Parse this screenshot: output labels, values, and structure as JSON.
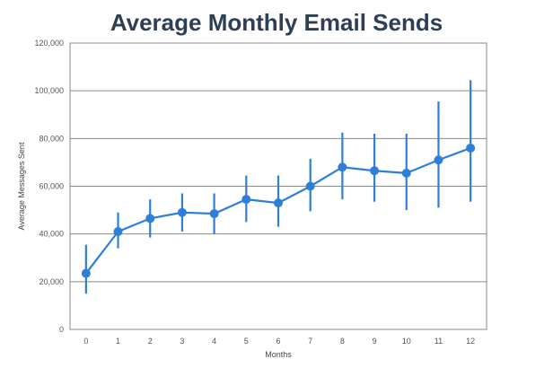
{
  "chart_data": {
    "type": "line",
    "title": "Average Monthly Email Sends",
    "xlabel": "Months",
    "ylabel": "Average Messages Sent",
    "x": [
      0,
      1,
      2,
      3,
      4,
      5,
      6,
      7,
      8,
      9,
      10,
      11,
      12
    ],
    "x_tick_labels": [
      "0",
      "1",
      "2",
      "3",
      "4",
      "5",
      "6",
      "7",
      "8",
      "9",
      "10",
      "11",
      "12"
    ],
    "ylim": [
      0,
      120000
    ],
    "y_ticks": [
      0,
      20000,
      40000,
      60000,
      80000,
      100000,
      120000
    ],
    "y_tick_labels": [
      "0",
      "20,000",
      "40,000",
      "60,000",
      "80,000",
      "100,000",
      "120,000"
    ],
    "grid": "horizontal",
    "series": [
      {
        "values": [
          23500,
          41000,
          46500,
          49000,
          48500,
          54500,
          53000,
          60000,
          68000,
          66500,
          65500,
          71000,
          76000
        ],
        "error_low": [
          15000,
          34000,
          38500,
          41000,
          40000,
          45000,
          43000,
          49500,
          54500,
          53500,
          50000,
          51000,
          53500
        ],
        "error_high": [
          35500,
          49000,
          54500,
          57000,
          57000,
          64500,
          64500,
          71500,
          82500,
          82000,
          82000,
          95500,
          104500
        ]
      }
    ],
    "colors": {
      "series": "#2f7fd8",
      "grid": "#8a8a8a",
      "frame": "#8a8a8a"
    }
  }
}
